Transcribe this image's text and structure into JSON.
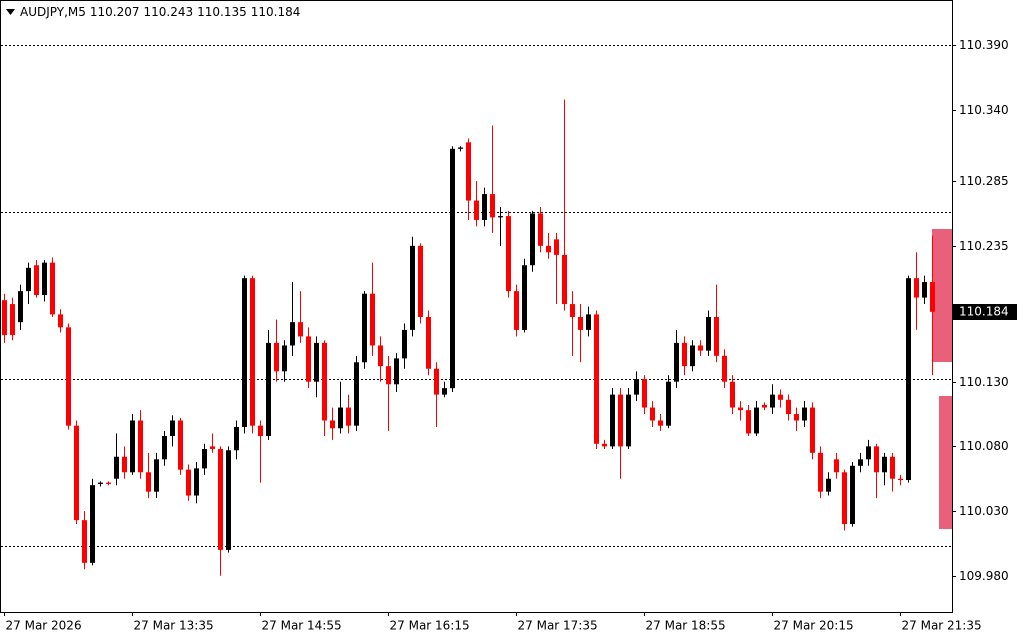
{
  "chart_data": {
    "type": "candlestick",
    "symbol": "AUDJPY,M5",
    "header_values": [
      110.207,
      110.243,
      110.135,
      110.184
    ],
    "current_price": 110.184,
    "up_color": "#000000",
    "down_color": "#ff0000",
    "ylim": [
      109.952,
      110.425
    ],
    "yticks": [
      {
        "value": 110.39,
        "label": "110.390"
      },
      {
        "value": 110.34,
        "label": "110.340"
      },
      {
        "value": 110.285,
        "label": "110.285"
      },
      {
        "value": 110.235,
        "label": "110.235"
      },
      {
        "value": 110.13,
        "label": "110.130"
      },
      {
        "value": 110.08,
        "label": "110.080"
      },
      {
        "value": 110.03,
        "label": "110.030"
      },
      {
        "value": 109.98,
        "label": "109.980"
      }
    ],
    "levels": [
      110.39,
      110.261,
      110.132,
      110.003
    ],
    "xticks": [
      "27 Mar 2026",
      "27 Mar 13:35",
      "27 Mar 14:55",
      "27 Mar 16:15",
      "27 Mar 17:35",
      "27 Mar 18:55",
      "27 Mar 20:15",
      "27 Mar 21:35"
    ],
    "ohlc": [
      [
        110.193,
        110.198,
        110.16,
        110.166
      ],
      [
        110.19,
        110.195,
        110.162,
        110.166
      ],
      [
        110.176,
        110.205,
        110.17,
        110.2
      ],
      [
        110.2,
        110.222,
        110.19,
        110.218
      ],
      [
        110.22,
        110.224,
        110.195,
        110.197
      ],
      [
        110.197,
        110.224,
        110.192,
        110.222
      ],
      [
        110.222,
        110.226,
        110.18,
        110.182
      ],
      [
        110.182,
        110.186,
        110.168,
        110.172
      ],
      [
        110.172,
        110.175,
        110.093,
        110.096
      ],
      [
        110.096,
        110.1,
        110.02,
        110.023
      ],
      [
        110.023,
        110.03,
        109.985,
        109.99
      ],
      [
        109.99,
        110.055,
        109.988,
        110.05
      ],
      [
        110.051,
        110.053,
        110.049,
        110.052
      ],
      [
        110.052,
        110.053,
        110.05,
        110.051
      ],
      [
        110.055,
        110.09,
        110.05,
        110.072
      ],
      [
        110.072,
        110.08,
        110.055,
        110.06
      ],
      [
        110.06,
        110.105,
        110.058,
        110.1
      ],
      [
        110.1,
        110.108,
        110.055,
        110.06
      ],
      [
        110.06,
        110.075,
        110.04,
        110.045
      ],
      [
        110.045,
        110.075,
        110.04,
        110.07
      ],
      [
        110.07,
        110.092,
        110.065,
        110.088
      ],
      [
        110.088,
        110.104,
        110.08,
        110.1
      ],
      [
        110.1,
        110.102,
        110.058,
        110.062
      ],
      [
        110.062,
        110.066,
        110.038,
        110.042
      ],
      [
        110.042,
        110.068,
        110.036,
        110.063
      ],
      [
        110.063,
        110.082,
        110.058,
        110.078
      ],
      [
        110.08,
        110.09,
        110.075,
        110.078
      ],
      [
        110.078,
        110.08,
        109.98,
        110.0
      ],
      [
        110.0,
        110.08,
        109.998,
        110.077
      ],
      [
        110.077,
        110.1,
        110.07,
        110.095
      ],
      [
        110.095,
        110.212,
        110.09,
        110.21
      ],
      [
        110.21,
        110.212,
        110.09,
        110.096
      ],
      [
        110.096,
        110.1,
        110.052,
        110.088
      ],
      [
        110.088,
        110.17,
        110.085,
        110.16
      ],
      [
        110.16,
        110.178,
        110.13,
        110.138
      ],
      [
        110.138,
        110.162,
        110.13,
        110.158
      ],
      [
        110.158,
        110.207,
        110.15,
        110.176
      ],
      [
        110.176,
        110.2,
        110.16,
        110.165
      ],
      [
        110.165,
        110.172,
        110.125,
        110.13
      ],
      [
        110.13,
        110.165,
        110.118,
        110.16
      ],
      [
        110.16,
        110.162,
        110.088,
        110.1
      ],
      [
        110.1,
        110.11,
        110.085,
        110.094
      ],
      [
        110.094,
        110.13,
        110.09,
        110.11
      ],
      [
        110.11,
        110.12,
        110.09,
        110.096
      ],
      [
        110.096,
        110.15,
        110.092,
        110.145
      ],
      [
        110.145,
        110.2,
        110.14,
        110.198
      ],
      [
        110.198,
        110.222,
        110.15,
        110.158
      ],
      [
        110.158,
        110.165,
        110.13,
        110.142
      ],
      [
        110.142,
        110.15,
        110.092,
        110.128
      ],
      [
        110.128,
        110.152,
        110.122,
        110.148
      ],
      [
        110.148,
        110.175,
        110.14,
        110.17
      ],
      [
        110.17,
        110.242,
        110.165,
        110.235
      ],
      [
        110.235,
        110.237,
        110.175,
        110.18
      ],
      [
        110.18,
        110.185,
        110.135,
        110.14
      ],
      [
        110.14,
        110.145,
        110.095,
        110.12
      ],
      [
        110.12,
        110.13,
        110.118,
        110.125
      ],
      [
        110.125,
        110.312,
        110.122,
        110.31
      ],
      [
        110.31,
        110.312,
        110.308,
        110.311
      ],
      [
        110.315,
        110.318,
        110.255,
        110.27
      ],
      [
        110.27,
        110.285,
        110.25,
        110.255
      ],
      [
        110.255,
        110.28,
        110.25,
        110.275
      ],
      [
        110.275,
        110.328,
        110.245,
        110.257
      ],
      [
        110.257,
        110.265,
        110.235,
        110.258
      ],
      [
        110.258,
        110.262,
        110.195,
        110.2
      ],
      [
        110.2,
        110.205,
        110.165,
        110.17
      ],
      [
        110.17,
        110.225,
        110.168,
        110.22
      ],
      [
        110.22,
        110.262,
        110.215,
        110.26
      ],
      [
        110.26,
        110.265,
        110.23,
        110.235
      ],
      [
        110.235,
        110.245,
        110.225,
        110.23
      ],
      [
        110.24,
        110.245,
        110.19,
        110.228
      ],
      [
        110.228,
        110.348,
        110.185,
        110.19
      ],
      [
        110.19,
        110.2,
        110.15,
        110.18
      ],
      [
        110.18,
        110.19,
        110.145,
        110.17
      ],
      [
        110.17,
        110.188,
        110.165,
        110.182
      ],
      [
        110.182,
        110.185,
        110.078,
        110.082
      ],
      [
        110.082,
        110.085,
        110.078,
        110.08
      ],
      [
        110.08,
        110.125,
        110.078,
        110.12
      ],
      [
        110.12,
        110.125,
        110.055,
        110.08
      ],
      [
        110.08,
        110.125,
        110.078,
        110.12
      ],
      [
        110.12,
        110.138,
        110.115,
        110.132
      ],
      [
        110.132,
        110.135,
        110.105,
        110.11
      ],
      [
        110.11,
        110.115,
        110.095,
        110.1
      ],
      [
        110.1,
        110.105,
        110.092,
        110.096
      ],
      [
        110.096,
        110.135,
        110.094,
        110.13
      ],
      [
        110.13,
        110.17,
        110.125,
        110.16
      ],
      [
        110.16,
        110.165,
        110.135,
        110.142
      ],
      [
        110.142,
        110.162,
        110.138,
        110.158
      ],
      [
        110.158,
        110.162,
        110.15,
        110.154
      ],
      [
        110.154,
        110.185,
        110.15,
        110.18
      ],
      [
        110.18,
        110.205,
        110.145,
        110.15
      ],
      [
        110.15,
        110.155,
        110.125,
        110.13
      ],
      [
        110.13,
        110.135,
        110.105,
        110.11
      ],
      [
        110.11,
        110.115,
        110.1,
        110.108
      ],
      [
        110.108,
        110.112,
        110.088,
        110.09
      ],
      [
        110.09,
        110.115,
        110.088,
        110.11
      ],
      [
        110.112,
        110.114,
        110.108,
        110.11
      ],
      [
        110.11,
        110.128,
        110.105,
        110.12
      ],
      [
        110.12,
        110.124,
        110.11,
        110.116
      ],
      [
        110.116,
        110.12,
        110.1,
        110.105
      ],
      [
        110.105,
        110.11,
        110.092,
        110.1
      ],
      [
        110.1,
        110.115,
        110.095,
        110.11
      ],
      [
        110.11,
        110.114,
        110.07,
        110.075
      ],
      [
        110.075,
        110.08,
        110.04,
        110.045
      ],
      [
        110.045,
        110.06,
        110.042,
        110.055
      ],
      [
        110.07,
        110.075,
        110.055,
        110.06
      ],
      [
        110.06,
        110.062,
        110.015,
        110.02
      ],
      [
        110.02,
        110.068,
        110.018,
        110.065
      ],
      [
        110.065,
        110.075,
        110.06,
        110.07
      ],
      [
        110.07,
        110.085,
        110.065,
        110.08
      ],
      [
        110.08,
        110.082,
        110.04,
        110.06
      ],
      [
        110.06,
        110.075,
        110.05,
        110.072
      ],
      [
        110.072,
        110.075,
        110.045,
        110.055
      ],
      [
        110.055,
        110.058,
        110.05,
        110.054
      ],
      [
        110.054,
        110.212,
        110.052,
        110.21
      ],
      [
        110.21,
        110.23,
        110.17,
        110.195
      ],
      [
        110.195,
        110.212,
        110.19,
        110.207
      ],
      [
        110.207,
        110.243,
        110.135,
        110.184
      ]
    ]
  }
}
